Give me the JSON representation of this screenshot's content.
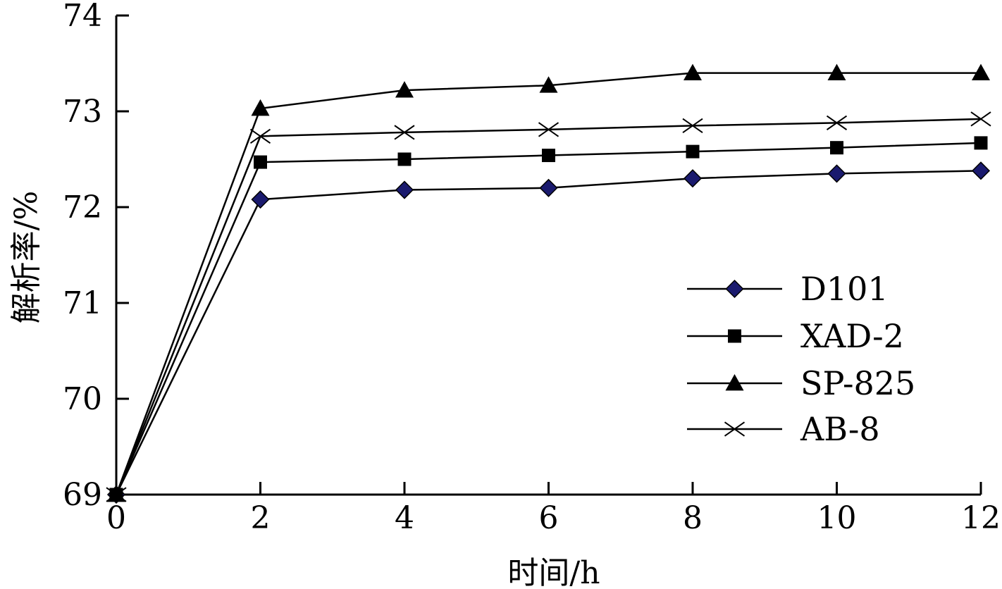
{
  "chart_data": {
    "type": "line",
    "xlabel": "时间/h",
    "ylabel": "解析率/%",
    "x": [
      0,
      2,
      4,
      6,
      8,
      10,
      12
    ],
    "xlim": [
      0,
      12
    ],
    "ylim": [
      69,
      74
    ],
    "xticks": [
      "0",
      "2",
      "4",
      "6",
      "8",
      "10",
      "12"
    ],
    "yticks": [
      "69",
      "70",
      "71",
      "72",
      "73",
      "74"
    ],
    "grid": false,
    "legend_position": "right",
    "series": [
      {
        "name": "D101",
        "marker": "diamond",
        "color": "#000000",
        "marker_color": "#1a1a6e",
        "values": [
          69.0,
          72.08,
          72.18,
          72.2,
          72.3,
          72.35,
          72.38
        ]
      },
      {
        "name": "XAD-2",
        "marker": "square",
        "color": "#000000",
        "marker_color": "#000000",
        "values": [
          69.0,
          72.47,
          72.5,
          72.54,
          72.58,
          72.62,
          72.67
        ]
      },
      {
        "name": "SP-825",
        "marker": "triangle",
        "color": "#000000",
        "marker_color": "#000000",
        "values": [
          69.0,
          73.03,
          73.22,
          73.27,
          73.4,
          73.4,
          73.4
        ]
      },
      {
        "name": "AB-8",
        "marker": "x",
        "color": "#000000",
        "marker_color": "#000000",
        "values": [
          69.0,
          72.74,
          72.78,
          72.81,
          72.85,
          72.88,
          72.92
        ]
      }
    ]
  }
}
